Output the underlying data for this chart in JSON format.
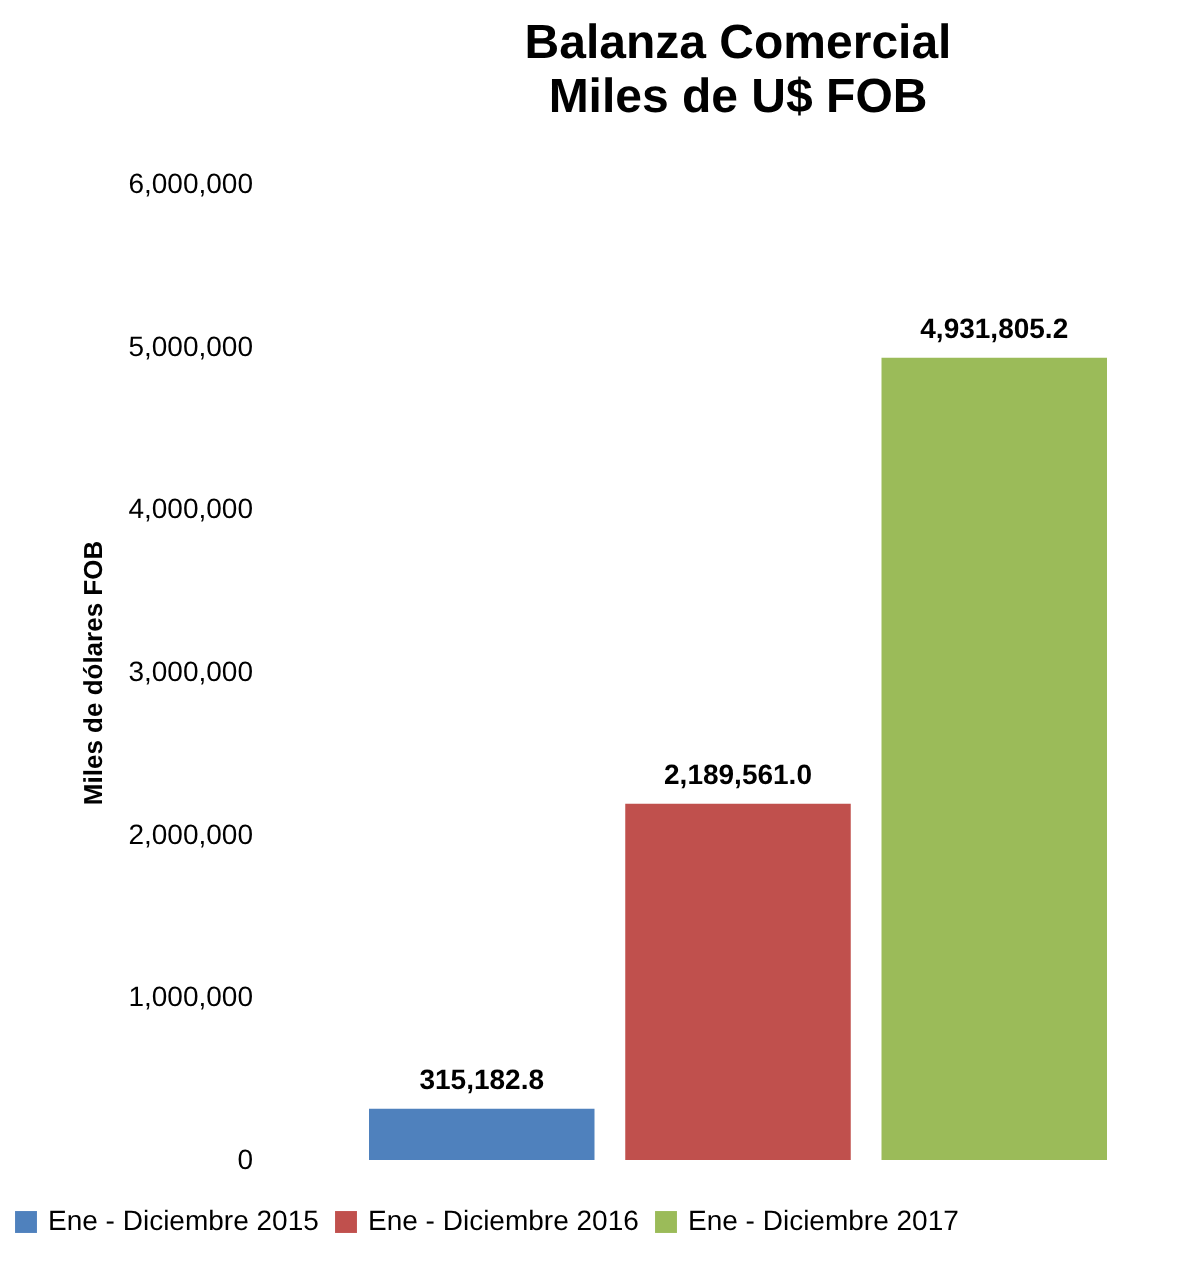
{
  "chart_data": {
    "type": "bar",
    "title": "Balanza Comercial",
    "subtitle": "Miles de U$ FOB",
    "ylabel": "Miles de dólares FOB",
    "categories": [
      null
    ],
    "series": [
      {
        "name": "Ene - Diciembre 2015",
        "color": "#4f81bd",
        "values": [
          315182.8
        ],
        "value_labels": [
          "315,182.8"
        ]
      },
      {
        "name": "Ene - Diciembre 2016",
        "color": "#c0504d",
        "values": [
          2189561.0
        ],
        "value_labels": [
          "2,189,561.0"
        ]
      },
      {
        "name": "Ene - Diciembre 2017",
        "color": "#9bbb59",
        "values": [
          4931805.2
        ],
        "value_labels": [
          "4,931,805.2"
        ]
      }
    ],
    "ylim": [
      0,
      6000000
    ],
    "yticks": [
      0,
      {
        "value": 1000000,
        "label": "1,000,000"
      },
      {
        "value": 2000000,
        "label": "2,000,000"
      },
      {
        "value": 3000000,
        "label": "3,000,000"
      },
      {
        "value": 4000000,
        "label": "4,000,000"
      },
      {
        "value": 5000000,
        "label": "5,000,000"
      },
      {
        "value": 6000000,
        "label": "6,000,000"
      }
    ],
    "grid": false,
    "legend": "bottom"
  }
}
